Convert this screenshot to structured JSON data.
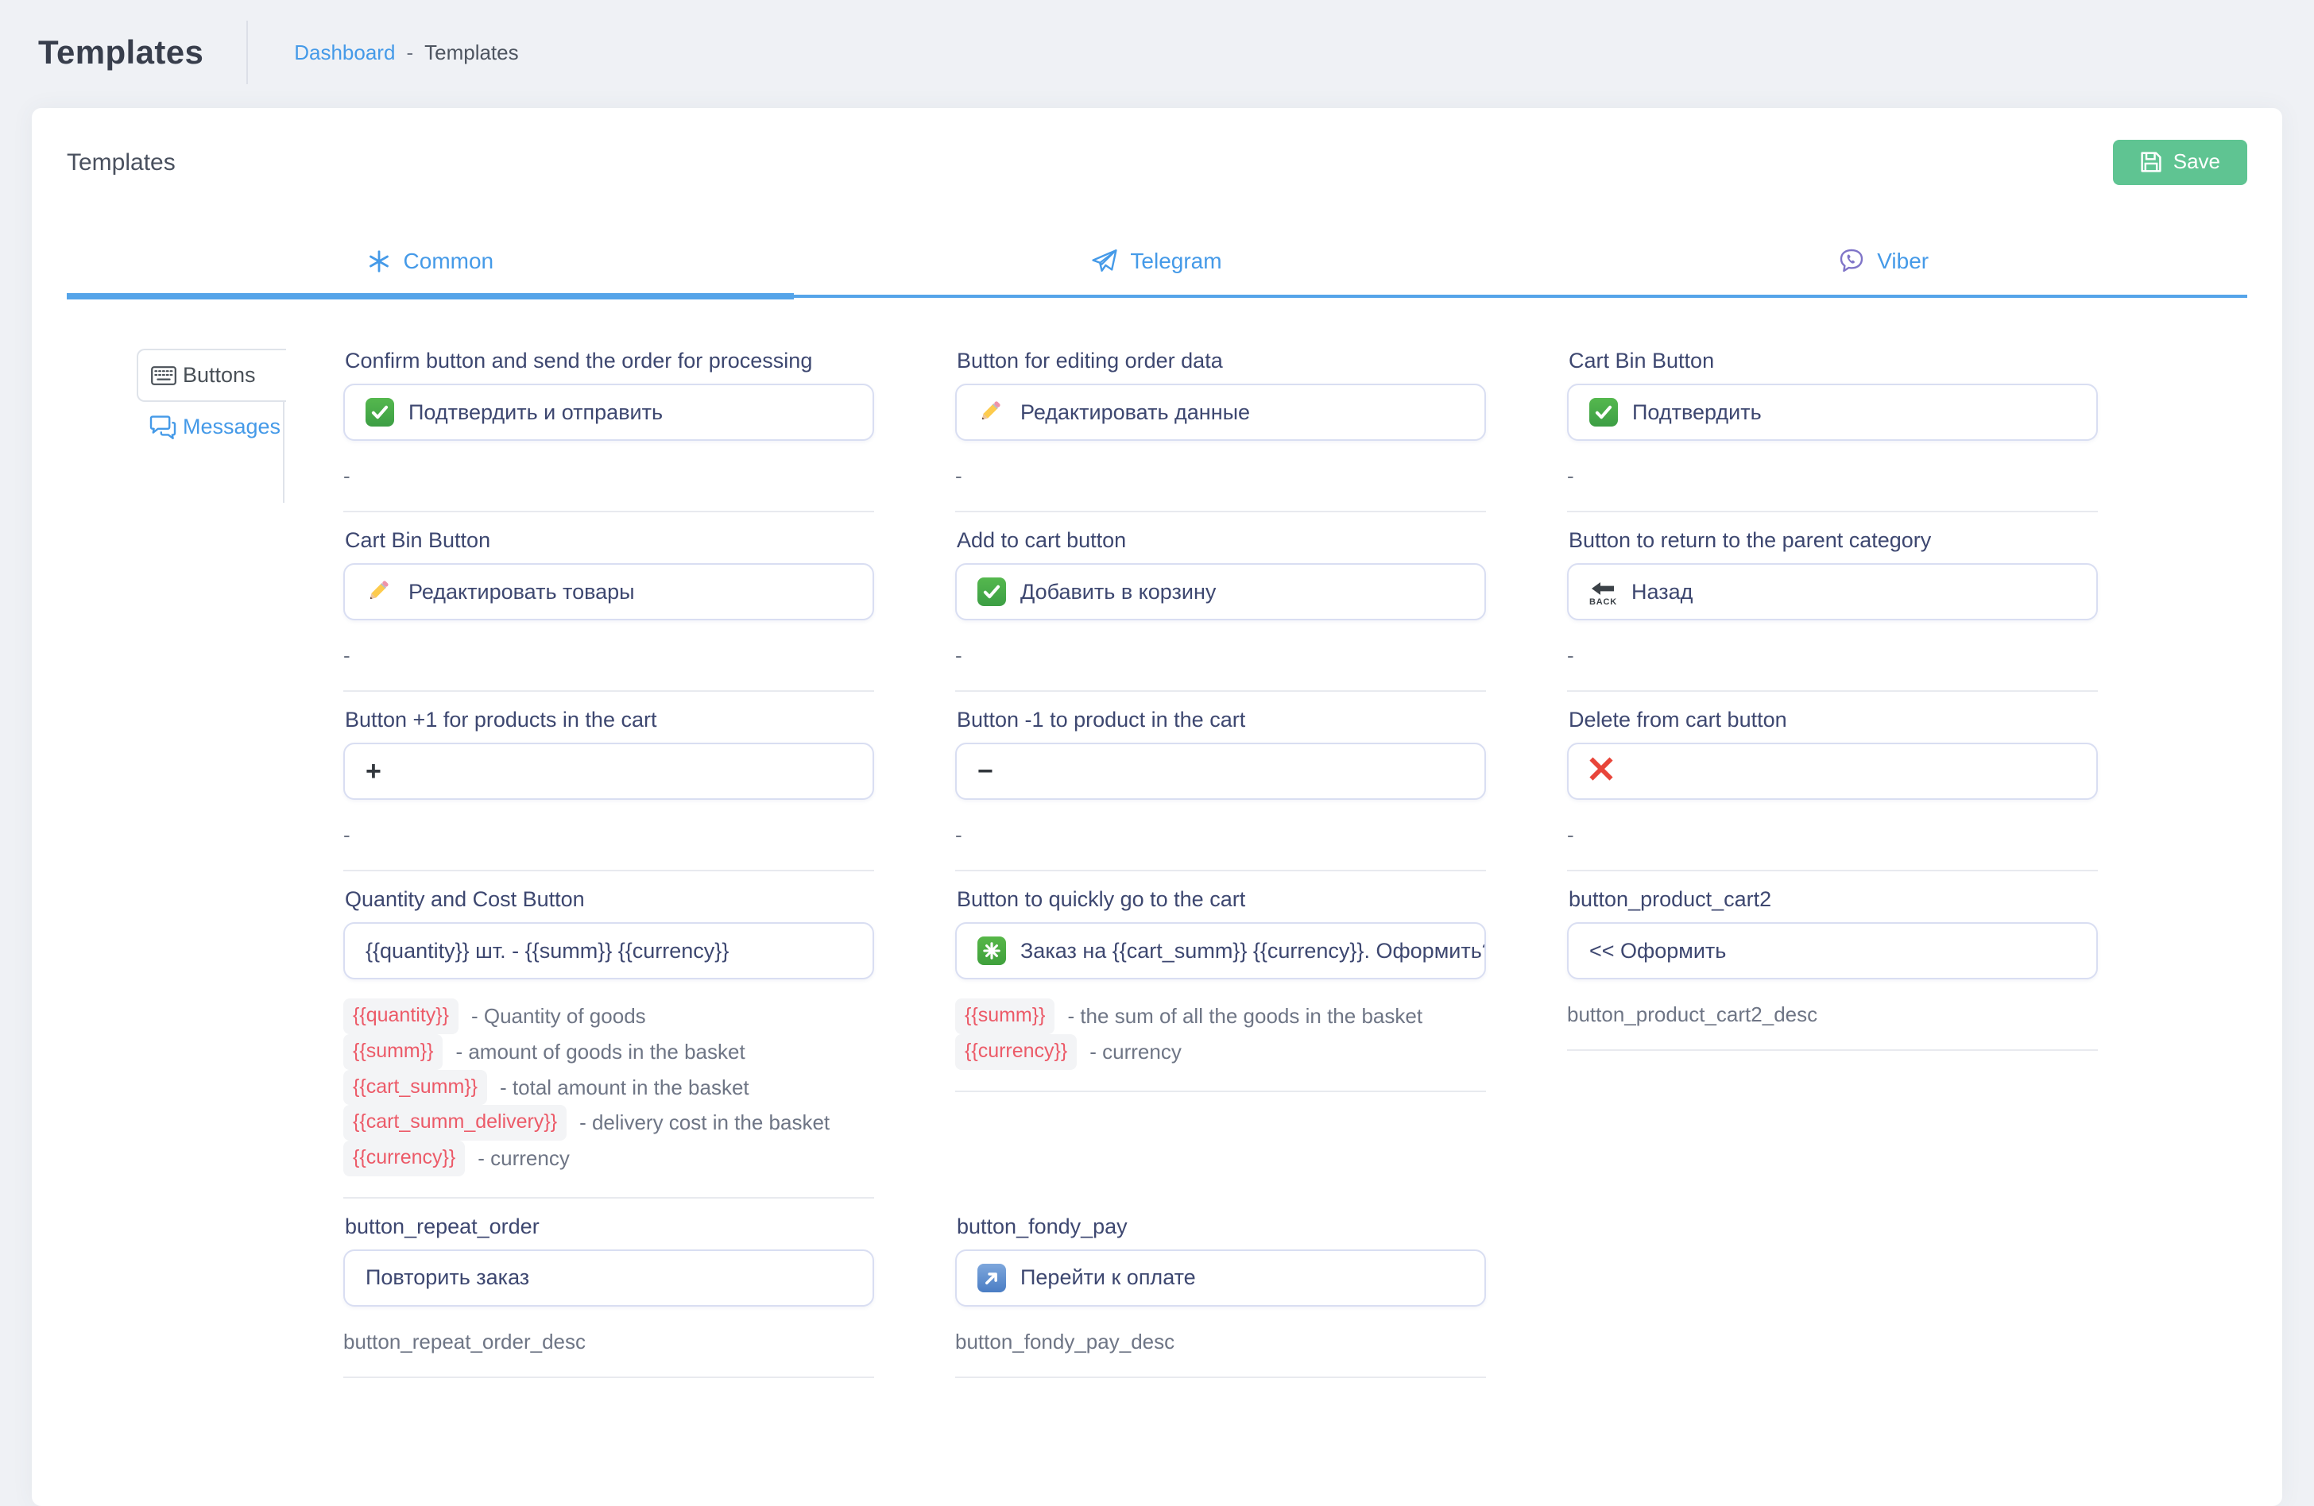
{
  "page": {
    "title": "Templates",
    "breadcrumb": {
      "link": "Dashboard",
      "separator": "-",
      "current": "Templates"
    }
  },
  "card": {
    "title": "Templates",
    "save_label": "Save",
    "save_icon": "floppy-disk-icon"
  },
  "tabs": [
    {
      "label": "Common",
      "icon": "asterisk-star-icon",
      "active": true
    },
    {
      "label": "Telegram",
      "icon": "telegram-plane-icon",
      "active": false
    },
    {
      "label": "Viber",
      "icon": "viber-phone-bubble-icon",
      "active": false
    }
  ],
  "side_tabs": [
    {
      "label": "Buttons",
      "icon": "keyboard-icon",
      "active": true
    },
    {
      "label": "Messages",
      "icon": "chat-bubbles-icon",
      "active": false
    }
  ],
  "fields": [
    {
      "label": "Confirm button and send the order for processing",
      "icon": "check-green-icon",
      "value": "Подтвердить и отправить",
      "desc": "-"
    },
    {
      "label": "Button for editing order data",
      "icon": "pencil-icon",
      "value": "Редактировать данные",
      "desc": "-"
    },
    {
      "label": "Cart Bin Button",
      "icon": "check-green-icon",
      "value": "Подтвердить",
      "desc": "-"
    },
    {
      "label": "Cart Bin Button",
      "icon": "pencil-icon",
      "value": "Редактировать товары",
      "desc": "-"
    },
    {
      "label": "Add to cart button",
      "icon": "check-green-icon",
      "value": "Добавить в корзину",
      "desc": "-"
    },
    {
      "label": "Button to return to the parent category",
      "icon": "back-arrow-icon",
      "value": "Назад",
      "desc": "-"
    },
    {
      "label": "Button +1 for products in the cart",
      "icon": "plus-icon",
      "value": "",
      "desc": "-"
    },
    {
      "label": "Button -1 to product in the cart",
      "icon": "minus-icon",
      "value": "",
      "desc": "-"
    },
    {
      "label": "Delete from cart button",
      "icon": "cross-red-icon",
      "value": "",
      "desc": "-"
    },
    {
      "label": "Quantity and Cost Button",
      "icon": "",
      "value": "{{quantity}} шт. - {{summ}} {{currency}}",
      "tokens": [
        {
          "code": "{{quantity}}",
          "text": "- Quantity of goods"
        },
        {
          "code": "{{summ}}",
          "text": "- amount of goods in the basket"
        },
        {
          "code": "{{cart_summ}}",
          "text": "- total amount in the basket"
        },
        {
          "code": "{{cart_summ_delivery}}",
          "text": "- delivery cost in the basket"
        },
        {
          "code": "{{currency}}",
          "text": "- currency"
        }
      ]
    },
    {
      "label": "Button to quickly go to the cart",
      "icon": "asterisk-green-icon",
      "value": "Заказ на {{cart_summ}} {{currency}}. Оформить?",
      "tokens": [
        {
          "code": "{{summ}}",
          "text": "- the sum of all the goods in the basket"
        },
        {
          "code": "{{currency}}",
          "text": "- currency"
        }
      ]
    },
    {
      "label": "button_product_cart2",
      "icon": "",
      "value": "<< Оформить",
      "desc": "button_product_cart2_desc"
    },
    {
      "label": "button_repeat_order",
      "icon": "",
      "value": "Повторить заказ",
      "desc": "button_repeat_order_desc"
    },
    {
      "label": "button_fondy_pay",
      "icon": "arrow-up-right-blue-icon",
      "value": "Перейти к оплате",
      "desc": "button_fondy_pay_desc"
    }
  ],
  "colors": {
    "link_blue": "#459ae8",
    "tab_underline_blue": "#55a4e9",
    "save_green": "#5fc492",
    "label_navy": "#3d4770",
    "token_red": "#ec5a68",
    "desc_gray": "#6e7585",
    "page_bg": "#eff1f5"
  }
}
